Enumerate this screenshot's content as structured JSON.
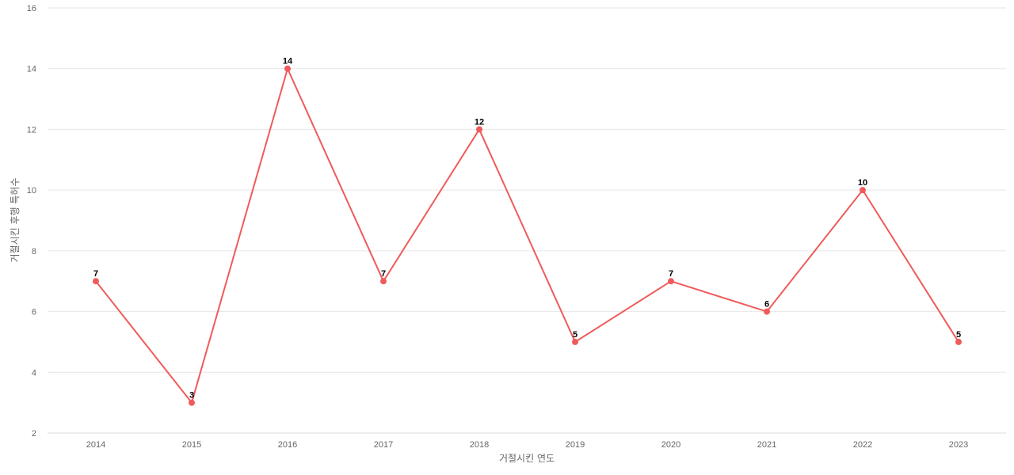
{
  "chart_data": {
    "type": "line",
    "title": "",
    "xlabel": "거절시킨 연도",
    "ylabel": "거절시킨 후행 특허수",
    "categories": [
      "2014",
      "2015",
      "2016",
      "2017",
      "2018",
      "2019",
      "2020",
      "2021",
      "2022",
      "2023"
    ],
    "series": [
      {
        "values": [
          7,
          3,
          14,
          7,
          12,
          5,
          7,
          6,
          10,
          5
        ],
        "color": "#ef5b5b"
      }
    ],
    "ylim": [
      2,
      16
    ],
    "yticks": [
      2,
      4,
      6,
      8,
      10,
      12,
      14,
      16
    ],
    "grid": true,
    "legend": "none",
    "data_labels": true
  }
}
